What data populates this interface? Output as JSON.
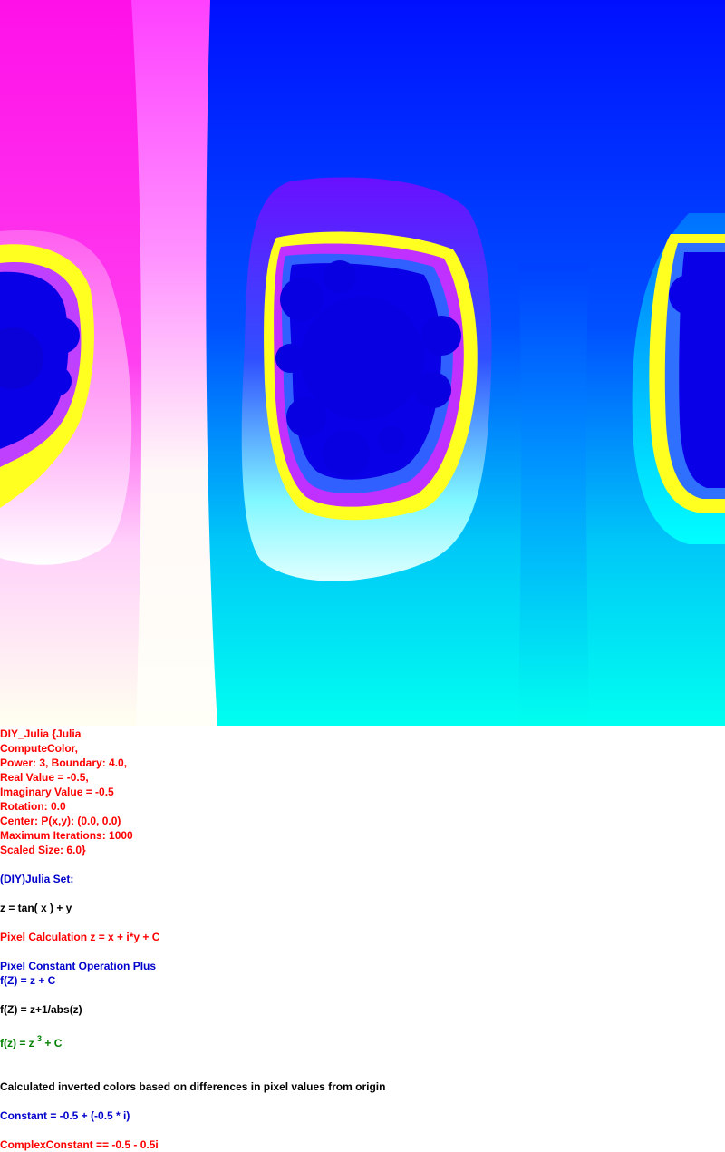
{
  "params": {
    "line1": "DIY_Julia {Julia",
    "line2": "ComputeColor,",
    "line3": "Power: 3, Boundary: 4.0,",
    "line4": "Real Value = -0.5,",
    "line5": "Imaginary Value = -0.5",
    "line6": "Rotation: 0.0",
    "line7": "Center: P(x,y): (0.0, 0.0)",
    "line8": "Maximum Iterations: 1000",
    "line9": "Scaled Size: 6.0}"
  },
  "set_title": "(DIY)Julia Set:",
  "z_formula": "z = tan( x ) + y",
  "pixel_calc": "Pixel Calculation z = x + i*y + C",
  "pixel_const_op": "Pixel Constant Operation Plus",
  "fz_plus_c": "f(Z) = z + C",
  "fz_abs": "f(Z) = z+1/abs(z)",
  "fz_power_prefix": "f(z) = z ",
  "fz_power_exp": "3",
  "fz_power_suffix": " + C",
  "color_note": "Calculated inverted colors based on differences in pixel values from origin",
  "constant": "Constant = -0.5 + (-0.5 * i)",
  "complex_constant": "ComplexConstant == -0.5 - 0.5i",
  "colors": {
    "red": "#ff0000",
    "blue": "#0000cc",
    "black": "#000000",
    "green": "#008000"
  }
}
